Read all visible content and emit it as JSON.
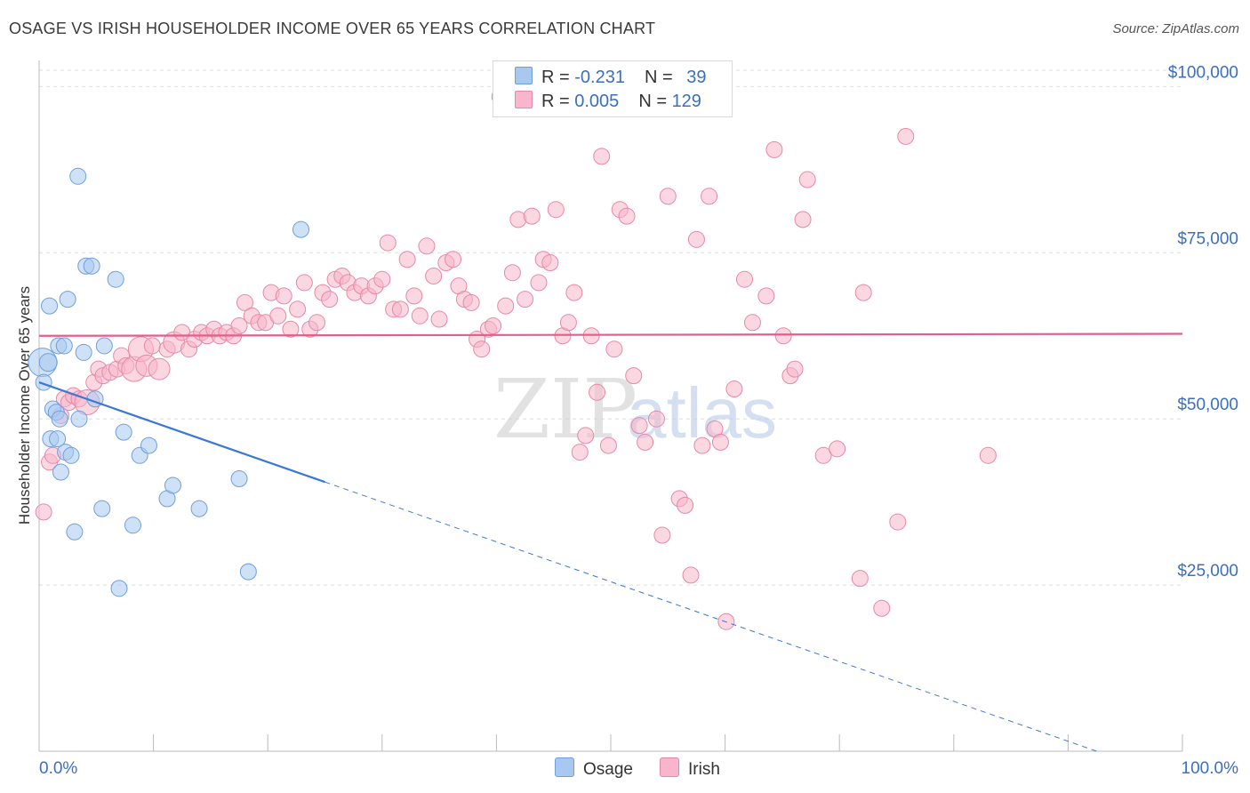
{
  "title": "OSAGE VS IRISH HOUSEHOLDER INCOME OVER 65 YEARS CORRELATION CHART",
  "source": "Source: ZipAtlas.com",
  "colors": {
    "osage_fill": "#a8c8f0",
    "osage_stroke": "#6f9fdb",
    "osage_line": "#3a78d4",
    "irish_fill": "#f7b6cb",
    "irish_stroke": "#e888a8",
    "irish_line": "#e0608a",
    "axis_label": "#3a6fc4",
    "grid": "#dddddd"
  },
  "legend": {
    "rows": [
      {
        "r_label": "R = ",
        "r_value": "-0.231",
        "n_label": "N = ",
        "n_value": "39"
      },
      {
        "r_label": "R = ",
        "r_value": "0.005",
        "n_label": "N = ",
        "n_value": "129"
      }
    ]
  },
  "chart_data": {
    "type": "scatter",
    "ylabel": "Householder Income Over 65 years",
    "xlim": [
      0,
      100
    ],
    "ylim": [
      0,
      105000
    ],
    "y_ticks": [
      {
        "value": 25000,
        "label": "$25,000"
      },
      {
        "value": 50000,
        "label": "$50,000"
      },
      {
        "value": 75000,
        "label": "$75,000"
      },
      {
        "value": 100000,
        "label": "$100,000"
      }
    ],
    "x_tick_labels": {
      "min": "0.0%",
      "max": "100.0%"
    },
    "watermark": {
      "zip": "ZIP",
      "atlas": "atlas"
    },
    "series": [
      {
        "name": "Osage",
        "trend": {
          "x0": 0,
          "y0": 55500,
          "x1": 100,
          "y1": -4500,
          "solid_until": 25
        },
        "points": [
          [
            0.3,
            58500,
            16
          ],
          [
            0.4,
            55500,
            9
          ],
          [
            0.8,
            58500,
            10
          ],
          [
            0.9,
            67000,
            9
          ],
          [
            1.0,
            47000,
            9
          ],
          [
            1.2,
            51500,
            9
          ],
          [
            1.5,
            51000,
            9
          ],
          [
            1.6,
            47000,
            9
          ],
          [
            1.7,
            61000,
            9
          ],
          [
            1.8,
            50000,
            9
          ],
          [
            1.9,
            42000,
            9
          ],
          [
            2.2,
            61000,
            9
          ],
          [
            2.3,
            45000,
            9
          ],
          [
            2.5,
            68000,
            9
          ],
          [
            2.8,
            44500,
            9
          ],
          [
            3.1,
            33000,
            9
          ],
          [
            3.4,
            86500,
            9
          ],
          [
            3.5,
            50000,
            9
          ],
          [
            3.9,
            60000,
            9
          ],
          [
            4.1,
            73000,
            9
          ],
          [
            4.6,
            73000,
            9
          ],
          [
            4.9,
            53000,
            9
          ],
          [
            5.5,
            36500,
            9
          ],
          [
            5.7,
            61000,
            9
          ],
          [
            6.7,
            71000,
            9
          ],
          [
            7.0,
            24500,
            9
          ],
          [
            7.4,
            48000,
            9
          ],
          [
            8.2,
            34000,
            9
          ],
          [
            8.8,
            44500,
            9
          ],
          [
            9.6,
            46000,
            9
          ],
          [
            11.2,
            38000,
            9
          ],
          [
            11.7,
            40000,
            9
          ],
          [
            14.0,
            36500,
            9
          ],
          [
            17.5,
            41000,
            9
          ],
          [
            18.3,
            27000,
            9
          ],
          [
            22.9,
            78500,
            9
          ]
        ]
      },
      {
        "name": "Irish",
        "trend": {
          "x0": 0,
          "y0": 62500,
          "x1": 100,
          "y1": 62800,
          "solid_until": 100
        },
        "points": [
          [
            0.4,
            36000,
            9
          ],
          [
            0.9,
            43500,
            9
          ],
          [
            1.2,
            44500,
            9
          ],
          [
            1.9,
            50500,
            9
          ],
          [
            2.2,
            53000,
            9
          ],
          [
            2.6,
            52500,
            9
          ],
          [
            3.0,
            53500,
            9
          ],
          [
            3.5,
            53000,
            9
          ],
          [
            4.2,
            52500,
            14
          ],
          [
            4.8,
            55500,
            9
          ],
          [
            5.2,
            57500,
            9
          ],
          [
            5.6,
            56500,
            9
          ],
          [
            6.2,
            57000,
            9
          ],
          [
            6.8,
            57500,
            9
          ],
          [
            7.2,
            59500,
            9
          ],
          [
            7.6,
            58000,
            9
          ],
          [
            8.3,
            57500,
            14
          ],
          [
            8.9,
            60500,
            14
          ],
          [
            9.4,
            58000,
            12
          ],
          [
            9.9,
            61000,
            9
          ],
          [
            10.5,
            57500,
            12
          ],
          [
            11.2,
            60500,
            9
          ],
          [
            11.8,
            61500,
            12
          ],
          [
            12.5,
            63000,
            9
          ],
          [
            13.1,
            60500,
            9
          ],
          [
            13.6,
            62000,
            9
          ],
          [
            14.2,
            63000,
            9
          ],
          [
            14.7,
            62500,
            9
          ],
          [
            15.3,
            63500,
            9
          ],
          [
            15.8,
            62500,
            9
          ],
          [
            16.4,
            63000,
            9
          ],
          [
            17.0,
            62500,
            9
          ],
          [
            17.5,
            64000,
            9
          ],
          [
            18.0,
            67500,
            9
          ],
          [
            18.6,
            65500,
            9
          ],
          [
            19.2,
            64500,
            9
          ],
          [
            19.8,
            64500,
            9
          ],
          [
            20.3,
            69000,
            9
          ],
          [
            20.9,
            65500,
            9
          ],
          [
            21.4,
            68500,
            9
          ],
          [
            22.0,
            63500,
            9
          ],
          [
            22.6,
            66500,
            9
          ],
          [
            23.2,
            70500,
            9
          ],
          [
            23.7,
            63500,
            9
          ],
          [
            24.3,
            64500,
            9
          ],
          [
            24.8,
            69000,
            9
          ],
          [
            25.4,
            68000,
            9
          ],
          [
            25.9,
            71000,
            9
          ],
          [
            26.5,
            71500,
            9
          ],
          [
            27.0,
            70500,
            9
          ],
          [
            27.6,
            69000,
            9
          ],
          [
            28.2,
            70000,
            9
          ],
          [
            28.8,
            68500,
            9
          ],
          [
            29.4,
            70000,
            9
          ],
          [
            30.0,
            71000,
            9
          ],
          [
            30.5,
            76500,
            9
          ],
          [
            31.0,
            66500,
            9
          ],
          [
            31.6,
            66500,
            9
          ],
          [
            32.2,
            74000,
            9
          ],
          [
            32.8,
            68500,
            9
          ],
          [
            33.3,
            65500,
            9
          ],
          [
            33.9,
            76000,
            9
          ],
          [
            34.5,
            71500,
            9
          ],
          [
            35.0,
            65000,
            9
          ],
          [
            35.6,
            73500,
            9
          ],
          [
            36.2,
            74000,
            9
          ],
          [
            36.7,
            70000,
            9
          ],
          [
            37.2,
            68000,
            9
          ],
          [
            37.8,
            67500,
            9
          ],
          [
            38.3,
            62000,
            9
          ],
          [
            38.7,
            60500,
            9
          ],
          [
            39.3,
            63500,
            9
          ],
          [
            39.7,
            64000,
            9
          ],
          [
            40.3,
            98500,
            9
          ],
          [
            40.8,
            67000,
            9
          ],
          [
            41.4,
            72000,
            9
          ],
          [
            41.9,
            80000,
            9
          ],
          [
            42.5,
            68000,
            9
          ],
          [
            43.1,
            80500,
            9
          ],
          [
            43.7,
            70500,
            9
          ],
          [
            44.1,
            74000,
            9
          ],
          [
            44.7,
            73500,
            9
          ],
          [
            45.2,
            81500,
            9
          ],
          [
            45.8,
            62500,
            9
          ],
          [
            46.3,
            64500,
            9
          ],
          [
            46.8,
            69000,
            9
          ],
          [
            47.3,
            45000,
            9
          ],
          [
            47.8,
            47500,
            9
          ],
          [
            48.3,
            62500,
            9
          ],
          [
            48.8,
            54000,
            9
          ],
          [
            49.2,
            89500,
            9
          ],
          [
            49.8,
            46000,
            9
          ],
          [
            50.3,
            60500,
            9
          ],
          [
            50.8,
            81500,
            9
          ],
          [
            51.4,
            80500,
            9
          ],
          [
            52.0,
            56500,
            9
          ],
          [
            52.5,
            49000,
            9
          ],
          [
            53.0,
            46500,
            9
          ],
          [
            54.0,
            50000,
            9
          ],
          [
            54.5,
            32500,
            9
          ],
          [
            55.0,
            83500,
            9
          ],
          [
            56.0,
            38000,
            9
          ],
          [
            56.5,
            37000,
            9
          ],
          [
            57.0,
            26500,
            9
          ],
          [
            57.5,
            77000,
            9
          ],
          [
            58.0,
            46000,
            9
          ],
          [
            58.6,
            83500,
            9
          ],
          [
            59.1,
            48500,
            9
          ],
          [
            59.6,
            46500,
            9
          ],
          [
            60.1,
            19500,
            9
          ],
          [
            60.8,
            54500,
            9
          ],
          [
            61.7,
            71000,
            9
          ],
          [
            62.4,
            64500,
            9
          ],
          [
            63.6,
            68500,
            9
          ],
          [
            64.3,
            90500,
            9
          ],
          [
            65.1,
            62500,
            9
          ],
          [
            65.7,
            56500,
            9
          ],
          [
            66.1,
            57500,
            9
          ],
          [
            66.8,
            80000,
            9
          ],
          [
            67.2,
            86000,
            9
          ],
          [
            68.6,
            44500,
            9
          ],
          [
            69.8,
            45500,
            9
          ],
          [
            71.8,
            26000,
            9
          ],
          [
            72.1,
            69000,
            9
          ],
          [
            73.7,
            21500,
            9
          ],
          [
            75.1,
            34500,
            9
          ],
          [
            75.8,
            92500,
            9
          ],
          [
            83.0,
            44500,
            9
          ]
        ]
      }
    ]
  }
}
